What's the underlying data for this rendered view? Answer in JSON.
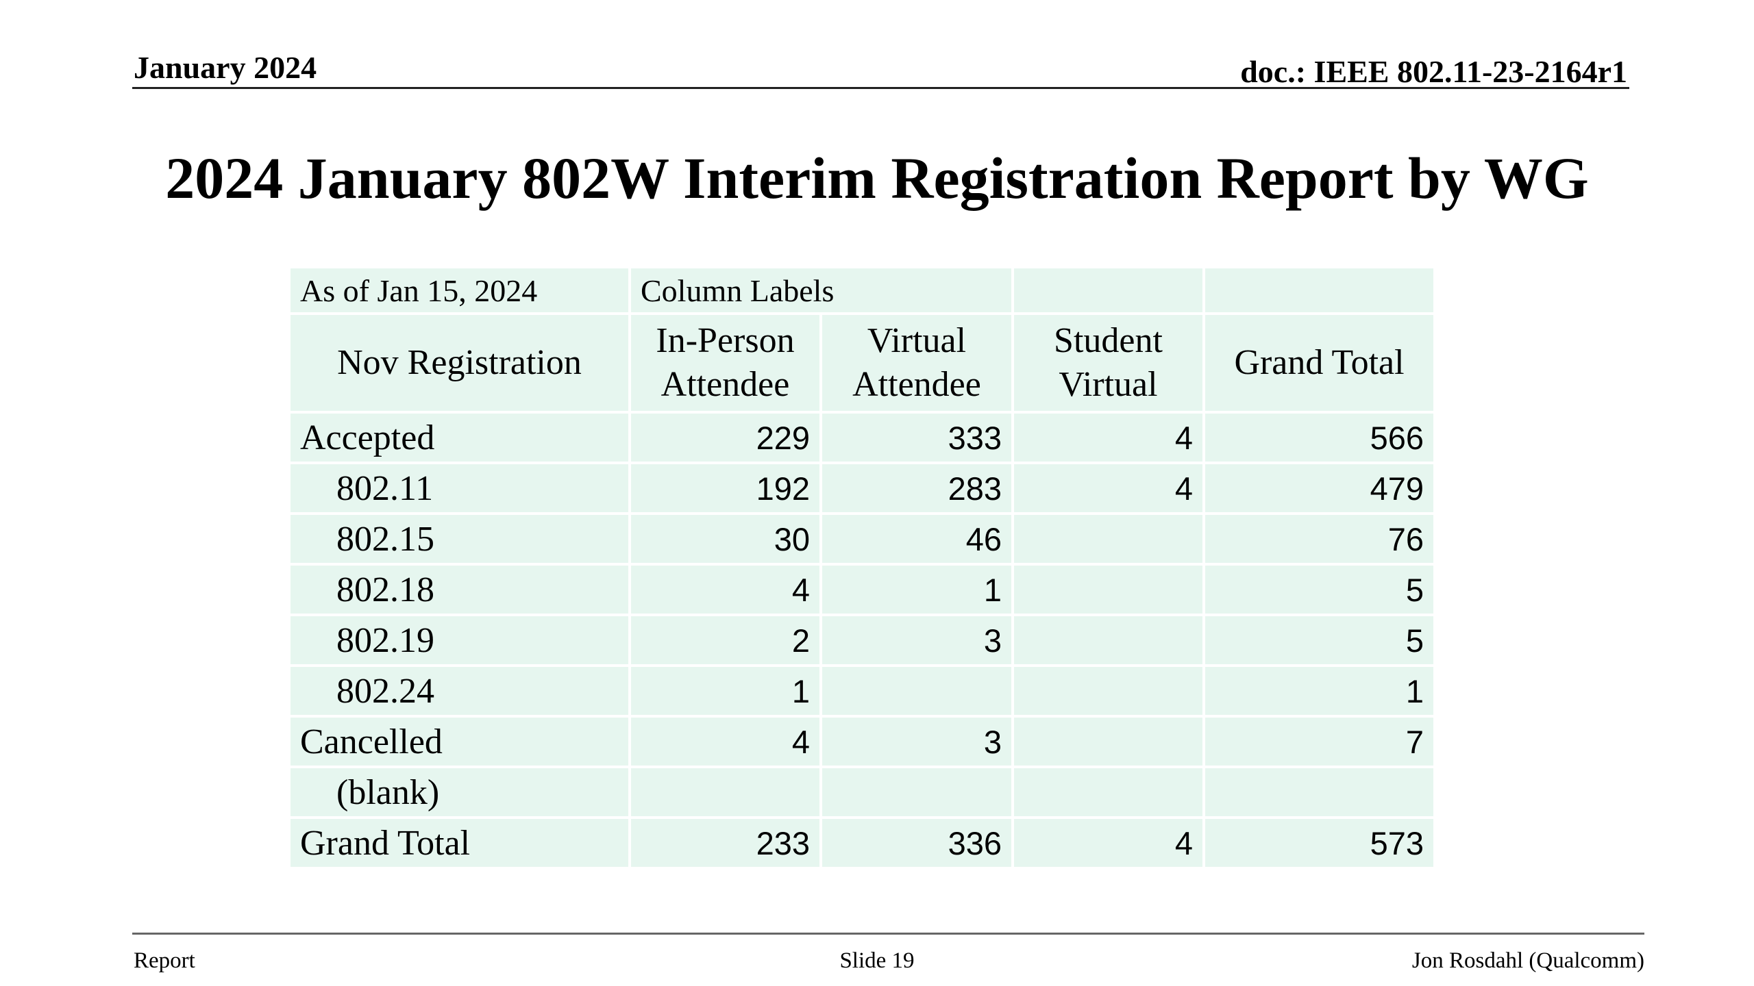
{
  "header": {
    "date": "January 2024",
    "doc_id": "doc.: IEEE 802.11-23-2164r1"
  },
  "title": "2024 January 802W Interim Registration Report by WG",
  "table": {
    "as_of": "As of Jan 15, 2024",
    "column_labels": "Column Labels",
    "row_header": "Nov Registration",
    "columns": [
      "In-Person Attendee",
      "Virtual Attendee",
      "Student Virtual",
      "Grand Total"
    ],
    "rows": [
      {
        "label": "Accepted",
        "values": [
          "229",
          "333",
          "4",
          "566"
        ]
      },
      {
        "label": "802.11",
        "values": [
          "192",
          "283",
          "4",
          "479"
        ]
      },
      {
        "label": "802.15",
        "values": [
          "30",
          "46",
          "",
          "76"
        ]
      },
      {
        "label": "802.18",
        "values": [
          "4",
          "1",
          "",
          "5"
        ]
      },
      {
        "label": "802.19",
        "values": [
          "2",
          "3",
          "",
          "5"
        ]
      },
      {
        "label": "802.24",
        "values": [
          "1",
          "",
          "",
          "1"
        ]
      },
      {
        "label": "Cancelled",
        "values": [
          "4",
          "3",
          "",
          "7"
        ]
      },
      {
        "label": "(blank)",
        "values": [
          "",
          "",
          "",
          ""
        ]
      },
      {
        "label": "Grand Total",
        "values": [
          "233",
          "336",
          "4",
          "573"
        ]
      }
    ],
    "cell_color": "#e6f6ef"
  },
  "footer": {
    "left": "Report",
    "center": "Slide 19",
    "right": "Jon Rosdahl (Qualcomm)"
  }
}
